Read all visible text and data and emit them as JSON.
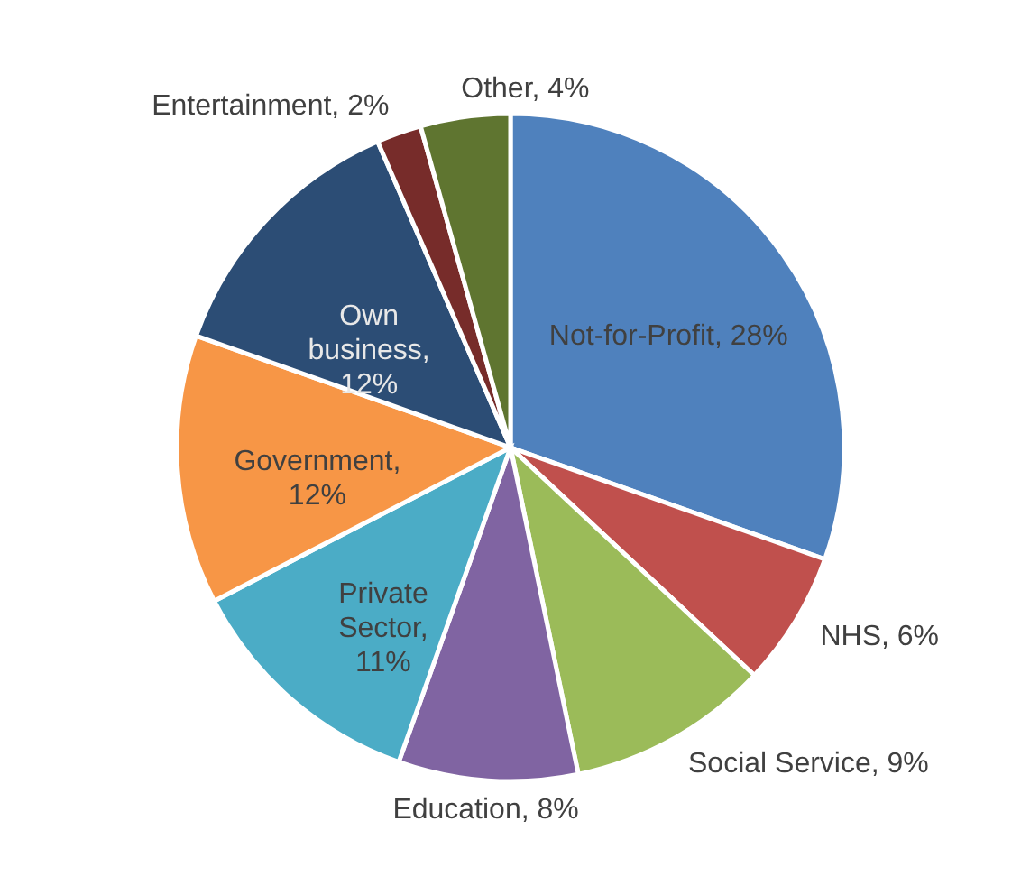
{
  "chart_data": {
    "type": "pie",
    "categories": [
      "Not-for-Profit, 28%",
      "NHS, 6%",
      "Social Service, 9%",
      "Education, 8%",
      "Private Sector, 11%",
      "Government, 12%",
      "Own business, 12%",
      "Entertainment, 2%",
      "Other, 4%"
    ],
    "values": [
      28,
      6,
      9,
      8,
      11,
      12,
      12,
      2,
      4
    ],
    "colors": [
      "#4f81bd",
      "#c0504d",
      "#9bbb59",
      "#8064a2",
      "#4bacc6",
      "#f79646",
      "#2c4d75",
      "#772c2a",
      "#5f7530"
    ]
  }
}
